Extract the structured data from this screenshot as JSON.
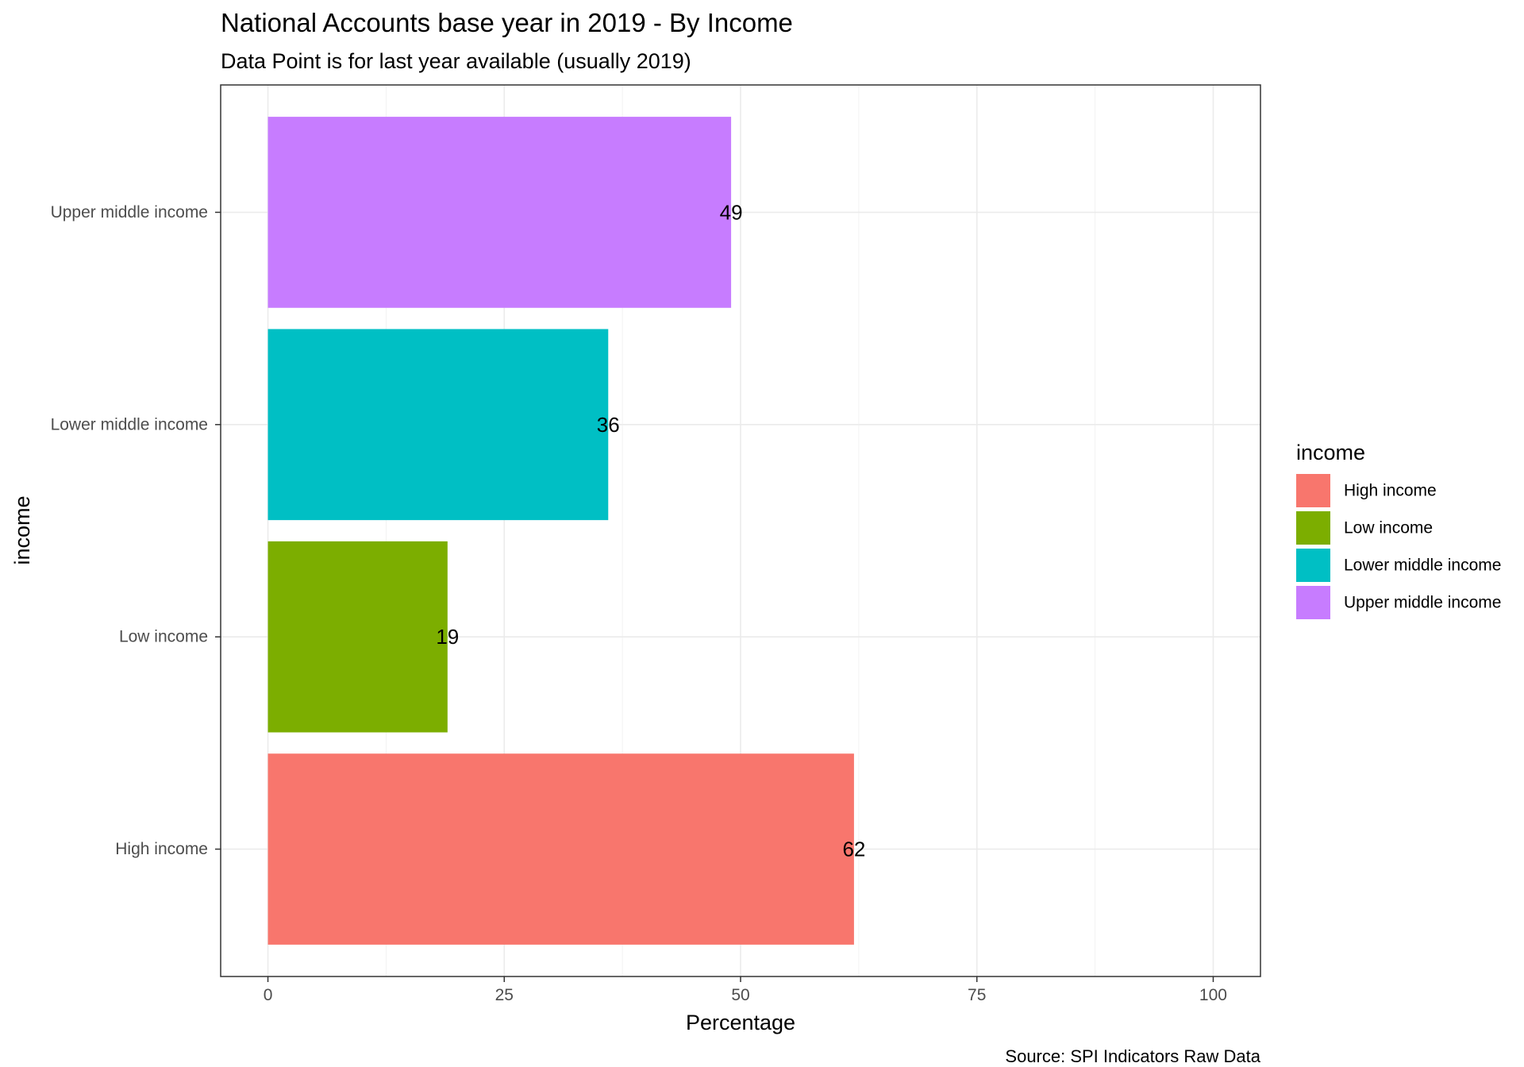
{
  "chart_data": {
    "type": "bar",
    "orientation": "horizontal",
    "title": "National Accounts base year in 2019 - By Income",
    "subtitle": "Data Point is for last year available (usually 2019)",
    "xlabel": "Percentage",
    "ylabel": "income",
    "caption": "Source: SPI Indicators Raw Data",
    "xlim": [
      -5,
      105
    ],
    "x_ticks": [
      0,
      25,
      50,
      75,
      100
    ],
    "x_tick_labels": [
      "0",
      "25",
      "50",
      "75",
      "100"
    ],
    "grid": true,
    "categories": [
      "High income",
      "Low income",
      "Lower middle income",
      "Upper middle income"
    ],
    "values": [
      62,
      19,
      36,
      49
    ],
    "data_labels": [
      "62",
      "19",
      "36",
      "49"
    ],
    "colors": [
      "#F8766D",
      "#7CAE00",
      "#00BFC4",
      "#C77CFF"
    ],
    "legend": {
      "title": "income",
      "position": "right",
      "entries": [
        "High income",
        "Low income",
        "Lower middle income",
        "Upper middle income"
      ]
    }
  }
}
